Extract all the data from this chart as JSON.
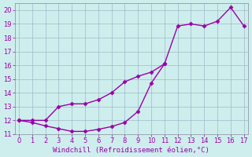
{
  "line1_x": [
    0,
    1,
    2,
    3,
    4,
    5,
    6,
    7,
    8,
    9,
    10,
    11,
    12,
    13,
    14,
    15,
    16,
    17
  ],
  "line1_y": [
    12.0,
    12.0,
    12.0,
    13.0,
    13.2,
    13.2,
    13.5,
    14.0,
    14.8,
    15.2,
    15.5,
    16.1,
    18.85,
    19.0,
    18.85,
    19.2,
    20.2,
    18.85
  ],
  "line2_x": [
    0,
    1,
    2,
    3,
    4,
    5,
    6,
    7,
    8,
    9,
    10,
    11
  ],
  "line2_y": [
    12.0,
    11.85,
    11.6,
    11.4,
    11.2,
    11.2,
    11.35,
    11.55,
    11.85,
    12.65,
    14.7,
    16.1
  ],
  "line_color": "#9900aa",
  "marker": "D",
  "markersize": 2.5,
  "linewidth": 1.0,
  "xlim": [
    -0.3,
    17.3
  ],
  "ylim": [
    11.0,
    20.5
  ],
  "xticks": [
    0,
    1,
    2,
    3,
    4,
    5,
    6,
    7,
    8,
    9,
    10,
    11,
    12,
    13,
    14,
    15,
    16,
    17
  ],
  "yticks": [
    11,
    12,
    13,
    14,
    15,
    16,
    17,
    18,
    19,
    20
  ],
  "xlabel": "Windchill (Refroidissement éolien,°C)",
  "xlabel_fontsize": 6.5,
  "tick_fontsize": 6,
  "bg_color": "#ceeeed",
  "grid_color": "#a0b8c8",
  "spine_color": "#888899"
}
